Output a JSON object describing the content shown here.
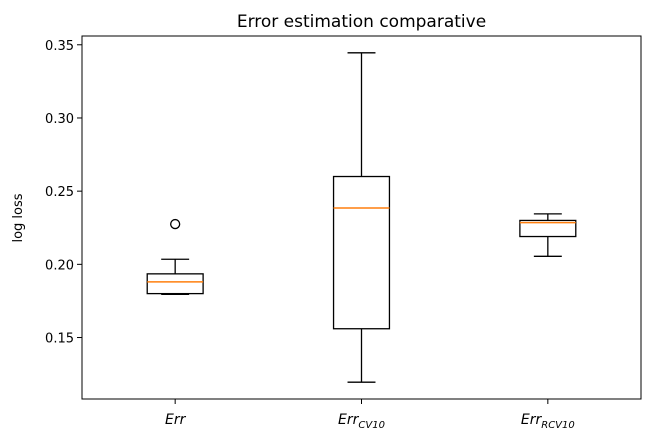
{
  "chart_data": {
    "type": "boxplot",
    "title": "Error estimation comparative",
    "xlabel": "",
    "ylabel": "log loss",
    "ylim": [
      0.108,
      0.356
    ],
    "yticks": [
      "0.15",
      "0.20",
      "0.25",
      "0.30",
      "0.35"
    ],
    "ytick_values": [
      0.15,
      0.2,
      0.25,
      0.3,
      0.35
    ],
    "grid": false,
    "categories": [
      {
        "base": "Err",
        "sub": ""
      },
      {
        "base": "Err",
        "sub": "CV10"
      },
      {
        "base": "Err",
        "sub": "RCV10"
      }
    ],
    "boxes": [
      {
        "whisker_low": 0.1795,
        "q1": 0.18,
        "median": 0.188,
        "q3": 0.1935,
        "whisker_high": 0.2035,
        "outliers": [
          0.2275
        ]
      },
      {
        "whisker_low": 0.1195,
        "q1": 0.156,
        "median": 0.2385,
        "q3": 0.26,
        "whisker_high": 0.3445,
        "outliers": []
      },
      {
        "whisker_low": 0.2055,
        "q1": 0.219,
        "median": 0.2285,
        "q3": 0.23,
        "whisker_high": 0.2345,
        "outliers": []
      }
    ],
    "colors": {
      "box": "#000000",
      "median": "#ff7f0e"
    }
  }
}
